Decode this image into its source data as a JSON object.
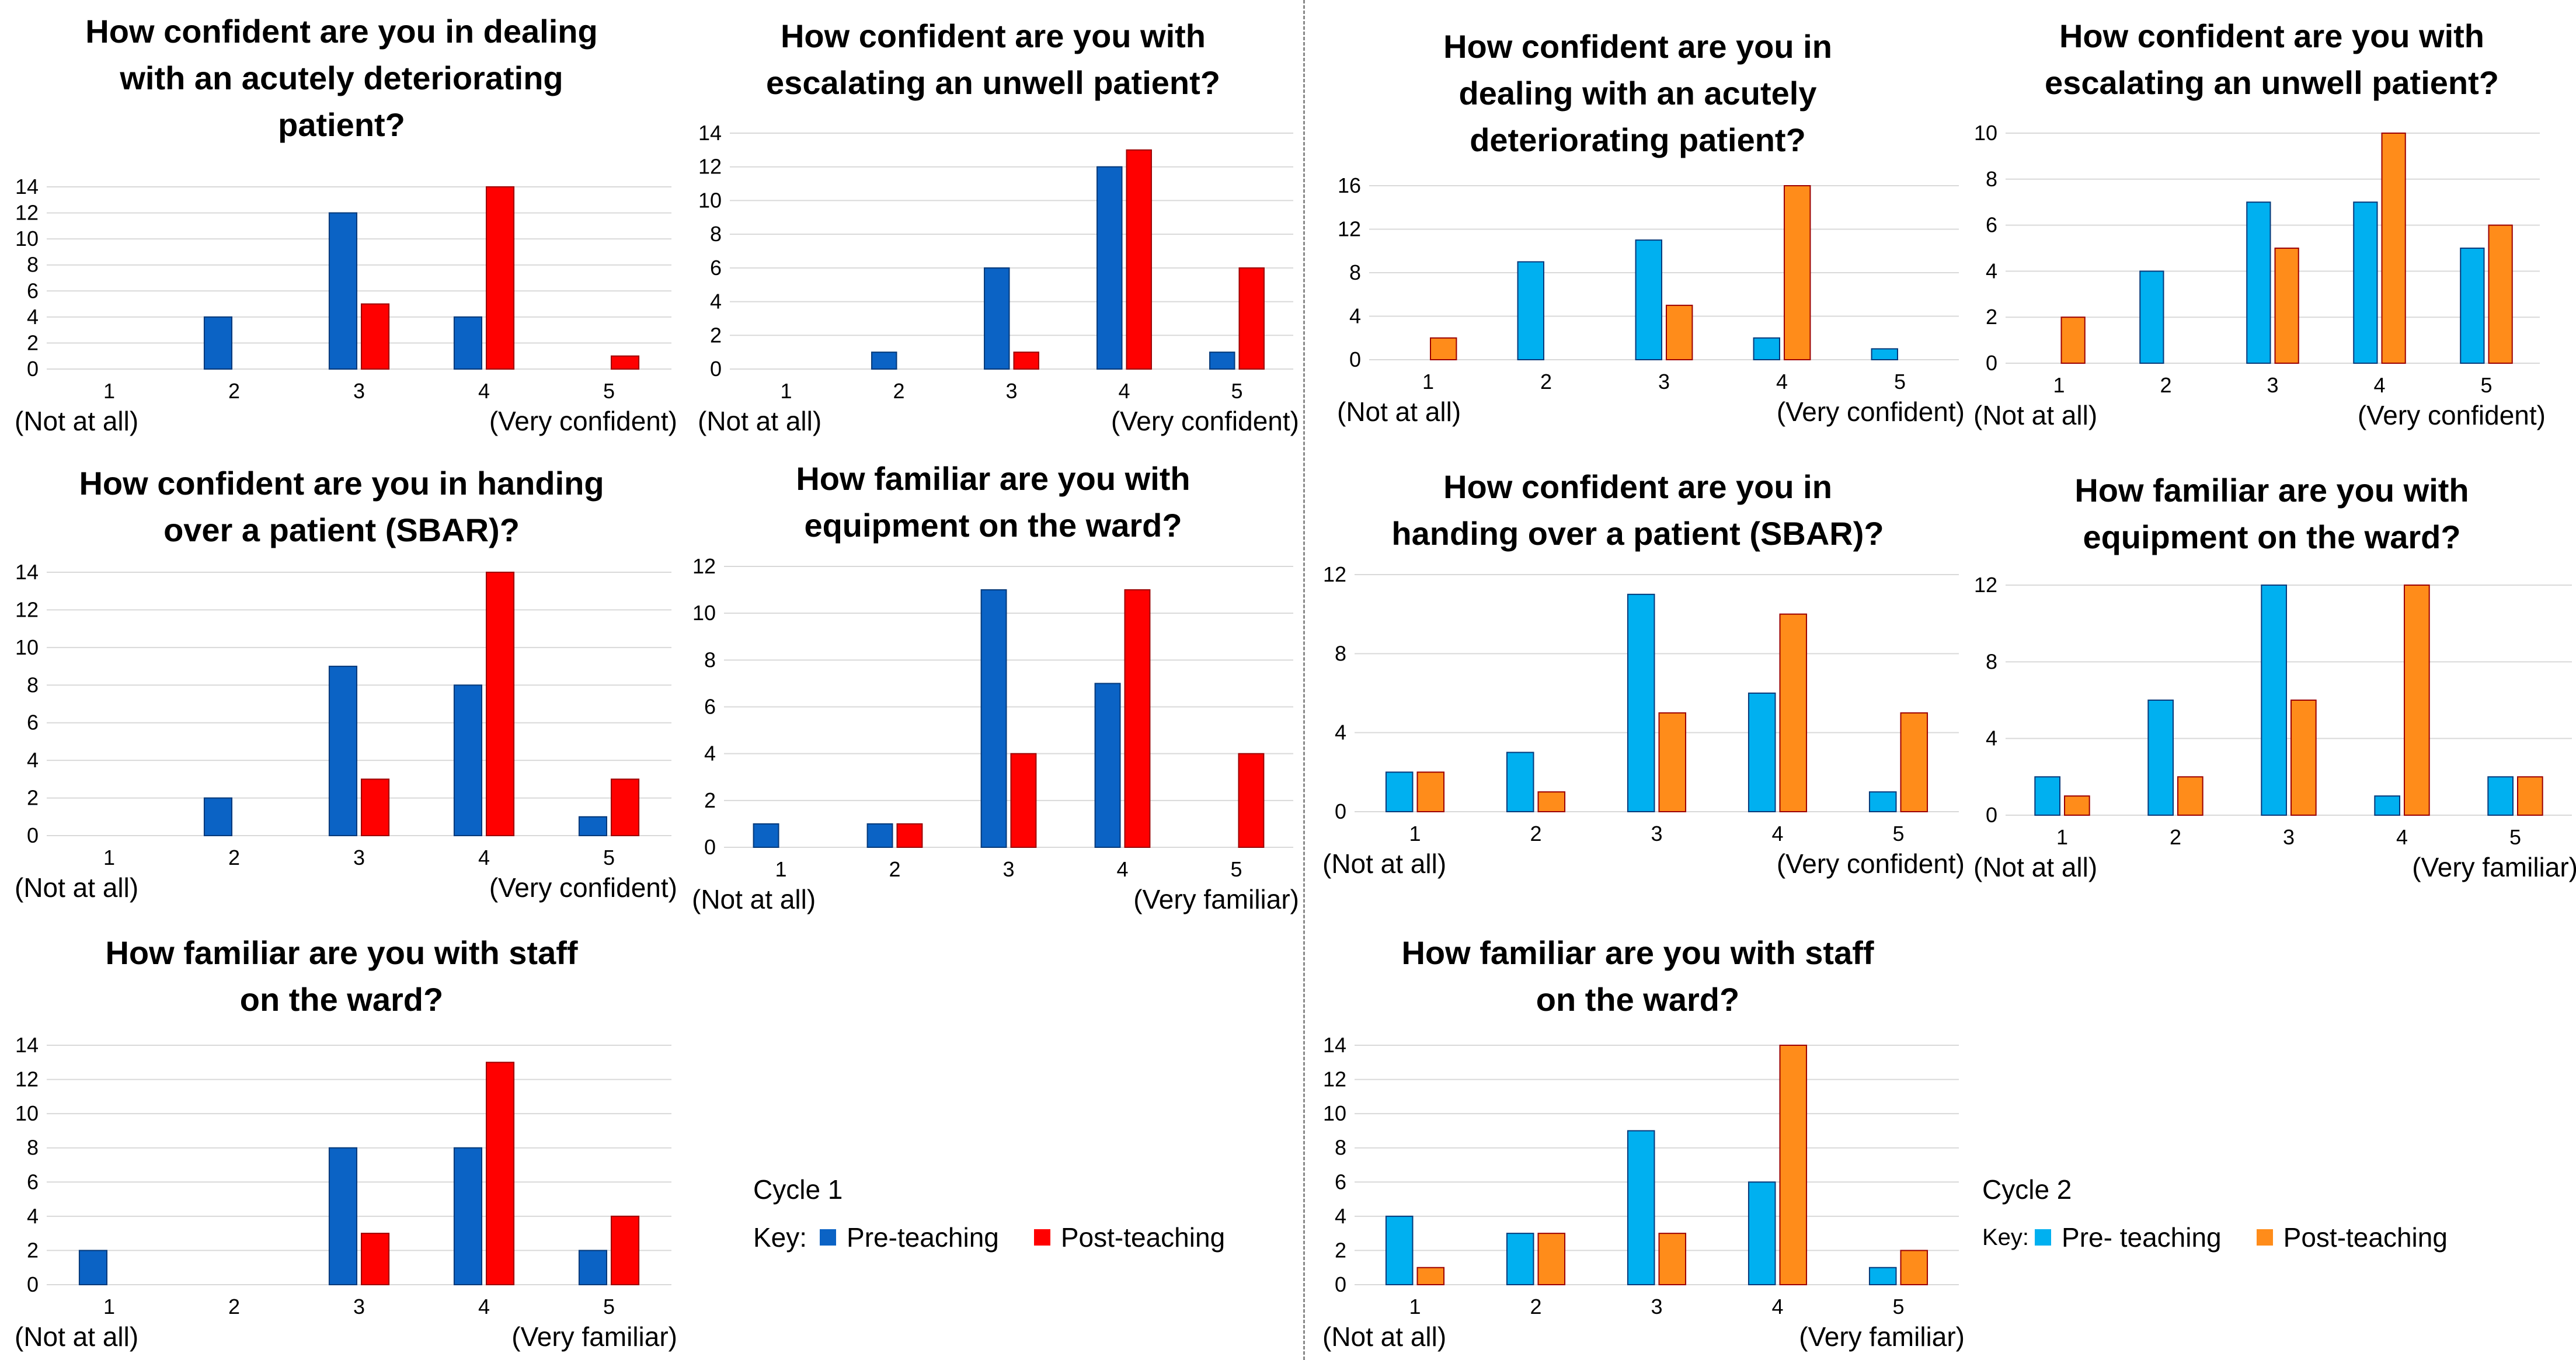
{
  "colors": {
    "cycle1_pre": "#0b63c5",
    "cycle1_post": "#ff0000",
    "cycle2_pre": "#00b0f0",
    "cycle2_post": "#ff8c1a",
    "grid": "#d9d9d9"
  },
  "chart_data": [
    {
      "type": "bar",
      "cycle": 1,
      "title": "How confident are you in dealing with an acutely deteriorating patient?",
      "categories": [
        "1",
        "2",
        "3",
        "4",
        "5"
      ],
      "end_labels": {
        "left": "(Not at all)",
        "right": "(Very confident)"
      },
      "ylim": [
        0,
        14
      ],
      "yticks": [
        0,
        2,
        4,
        6,
        8,
        10,
        12,
        14
      ],
      "grid": true,
      "series": [
        {
          "name": "Pre-teaching",
          "values": [
            0,
            4,
            12,
            4,
            0
          ]
        },
        {
          "name": "Post-teaching",
          "values": [
            0,
            0,
            5,
            14,
            1
          ]
        }
      ]
    },
    {
      "type": "bar",
      "cycle": 1,
      "title": "How confident are you with escalating an unwell patient?",
      "categories": [
        "1",
        "2",
        "3",
        "4",
        "5"
      ],
      "end_labels": {
        "left": "(Not at all)",
        "right": "(Very confident)"
      },
      "ylim": [
        0,
        14
      ],
      "yticks": [
        0,
        2,
        4,
        6,
        8,
        10,
        12,
        14
      ],
      "grid": true,
      "series": [
        {
          "name": "Pre-teaching",
          "values": [
            0,
            1,
            6,
            12,
            1
          ]
        },
        {
          "name": "Post-teaching",
          "values": [
            0,
            0,
            1,
            13,
            6
          ]
        }
      ]
    },
    {
      "type": "bar",
      "cycle": 1,
      "title": "How confident are you in handing over a patient (SBAR)?",
      "categories": [
        "1",
        "2",
        "3",
        "4",
        "5"
      ],
      "end_labels": {
        "left": "(Not at all)",
        "right": "(Very confident)"
      },
      "ylim": [
        0,
        14
      ],
      "yticks": [
        0,
        2,
        4,
        6,
        8,
        10,
        12,
        14
      ],
      "grid": true,
      "series": [
        {
          "name": "Pre-teaching",
          "values": [
            0,
            2,
            9,
            8,
            1
          ]
        },
        {
          "name": "Post-teaching",
          "values": [
            0,
            0,
            3,
            14,
            3
          ]
        }
      ]
    },
    {
      "type": "bar",
      "cycle": 1,
      "title": "How familiar are you with equipment on the ward?",
      "categories": [
        "1",
        "2",
        "3",
        "4",
        "5"
      ],
      "end_labels": {
        "left": "(Not at all)",
        "right": "(Very familiar)"
      },
      "ylim": [
        0,
        12
      ],
      "yticks": [
        0,
        2,
        4,
        6,
        8,
        10,
        12
      ],
      "grid": true,
      "series": [
        {
          "name": "Pre-teaching",
          "values": [
            1,
            1,
            11,
            7,
            0
          ]
        },
        {
          "name": "Post-teaching",
          "values": [
            0,
            1,
            4,
            11,
            4
          ]
        }
      ]
    },
    {
      "type": "bar",
      "cycle": 1,
      "title": "How familiar are you with staff on the ward?",
      "categories": [
        "1",
        "2",
        "3",
        "4",
        "5"
      ],
      "end_labels": {
        "left": "(Not at all)",
        "right": "(Very familiar)"
      },
      "ylim": [
        0,
        14
      ],
      "yticks": [
        0,
        2,
        4,
        6,
        8,
        10,
        12,
        14
      ],
      "grid": true,
      "series": [
        {
          "name": "Pre-teaching",
          "values": [
            2,
            0,
            8,
            8,
            2
          ]
        },
        {
          "name": "Post-teaching",
          "values": [
            0,
            0,
            3,
            13,
            4
          ]
        }
      ]
    },
    {
      "type": "bar",
      "cycle": 2,
      "title": "How confident are you in dealing with an acutely deteriorating patient?",
      "categories": [
        "1",
        "2",
        "3",
        "4",
        "5"
      ],
      "end_labels": {
        "left": "(Not at all)",
        "right": "(Very confident)"
      },
      "ylim": [
        0,
        16
      ],
      "yticks": [
        0,
        4,
        8,
        12,
        16
      ],
      "grid": true,
      "series": [
        {
          "name": "Pre- teaching",
          "values": [
            0,
            9,
            11,
            2,
            1
          ]
        },
        {
          "name": "Post-teaching",
          "values": [
            2,
            0,
            5,
            16,
            0
          ]
        }
      ]
    },
    {
      "type": "bar",
      "cycle": 2,
      "title": "How confident are you with escalating an unwell patient?",
      "categories": [
        "1",
        "2",
        "3",
        "4",
        "5"
      ],
      "end_labels": {
        "left": "(Not at all)",
        "right": "(Very confident)"
      },
      "ylim": [
        0,
        10
      ],
      "yticks": [
        0,
        2,
        4,
        6,
        8,
        10
      ],
      "grid": true,
      "series": [
        {
          "name": "Pre- teaching",
          "values": [
            0,
            4,
            7,
            7,
            5
          ]
        },
        {
          "name": "Post-teaching",
          "values": [
            2,
            0,
            5,
            10,
            6
          ]
        }
      ]
    },
    {
      "type": "bar",
      "cycle": 2,
      "title": "How confident are you in handing over a patient (SBAR)?",
      "categories": [
        "1",
        "2",
        "3",
        "4",
        "5"
      ],
      "end_labels": {
        "left": "(Not at all)",
        "right": "(Very confident)"
      },
      "ylim": [
        0,
        12
      ],
      "yticks": [
        0,
        4,
        8,
        12
      ],
      "grid": true,
      "series": [
        {
          "name": "Pre- teaching",
          "values": [
            2,
            3,
            11,
            6,
            1
          ]
        },
        {
          "name": "Post-teaching",
          "values": [
            2,
            1,
            5,
            10,
            5
          ]
        }
      ]
    },
    {
      "type": "bar",
      "cycle": 2,
      "title": "How familiar are you with equipment on the ward?",
      "categories": [
        "1",
        "2",
        "3",
        "4",
        "5"
      ],
      "end_labels": {
        "left": "(Not at all)",
        "right": "(Very familiar)"
      },
      "ylim": [
        0,
        12
      ],
      "yticks": [
        0,
        4,
        8,
        12
      ],
      "grid": true,
      "series": [
        {
          "name": "Pre- teaching",
          "values": [
            2,
            6,
            12,
            1,
            2
          ]
        },
        {
          "name": "Post-teaching",
          "values": [
            1,
            2,
            6,
            12,
            2
          ]
        }
      ]
    },
    {
      "type": "bar",
      "cycle": 2,
      "title": "How familiar are you with staff on the ward?",
      "categories": [
        "1",
        "2",
        "3",
        "4",
        "5"
      ],
      "end_labels": {
        "left": "(Not at all)",
        "right": "(Very familiar)"
      },
      "ylim": [
        0,
        14
      ],
      "yticks": [
        0,
        2,
        4,
        6,
        8,
        10,
        12,
        14
      ],
      "grid": true,
      "series": [
        {
          "name": "Pre- teaching",
          "values": [
            4,
            3,
            9,
            6,
            1
          ]
        },
        {
          "name": "Post-teaching",
          "values": [
            1,
            3,
            3,
            14,
            2
          ]
        }
      ]
    }
  ],
  "keys": [
    {
      "cycle_label": "Cycle 1",
      "key_label": "Key:",
      "pre_label": "Pre-teaching",
      "post_label": "Post-teaching"
    },
    {
      "cycle_label": "Cycle 2",
      "key_label": "Key:",
      "pre_label": "Pre- teaching",
      "post_label": "Post-teaching"
    }
  ]
}
